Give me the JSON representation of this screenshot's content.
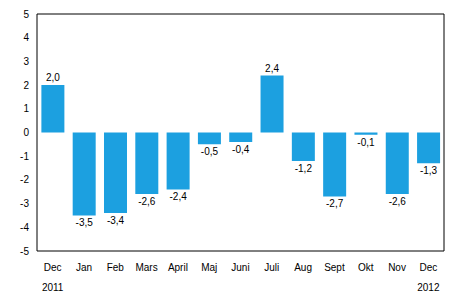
{
  "chart_data": {
    "type": "bar",
    "categories": [
      "Dec",
      "Jan",
      "Feb",
      "Mars",
      "April",
      "Maj",
      "Juni",
      "Juli",
      "Aug",
      "Sept",
      "Okt",
      "Nov",
      "Dec"
    ],
    "years": [
      "2011",
      null,
      null,
      null,
      null,
      null,
      null,
      null,
      null,
      null,
      null,
      null,
      "2012"
    ],
    "values": [
      2.0,
      -3.5,
      -3.4,
      -2.6,
      -2.4,
      -0.5,
      -0.4,
      2.4,
      -1.2,
      -2.7,
      -0.1,
      -2.6,
      -1.3
    ],
    "value_labels": [
      "2,0",
      "-3,5",
      "-3,4",
      "-2,6",
      "-2,4",
      "-0,5",
      "-0,4",
      "2,4",
      "-1,2",
      "-2,7",
      "-0,1",
      "-2,6",
      "-1,3"
    ],
    "color": "#1ca0e0",
    "ylim": [
      -5,
      5
    ],
    "yticks": [
      -5,
      -4,
      -3,
      -2,
      -1,
      0,
      1,
      2,
      3,
      4,
      5
    ],
    "grid": true,
    "data_labels": true
  }
}
